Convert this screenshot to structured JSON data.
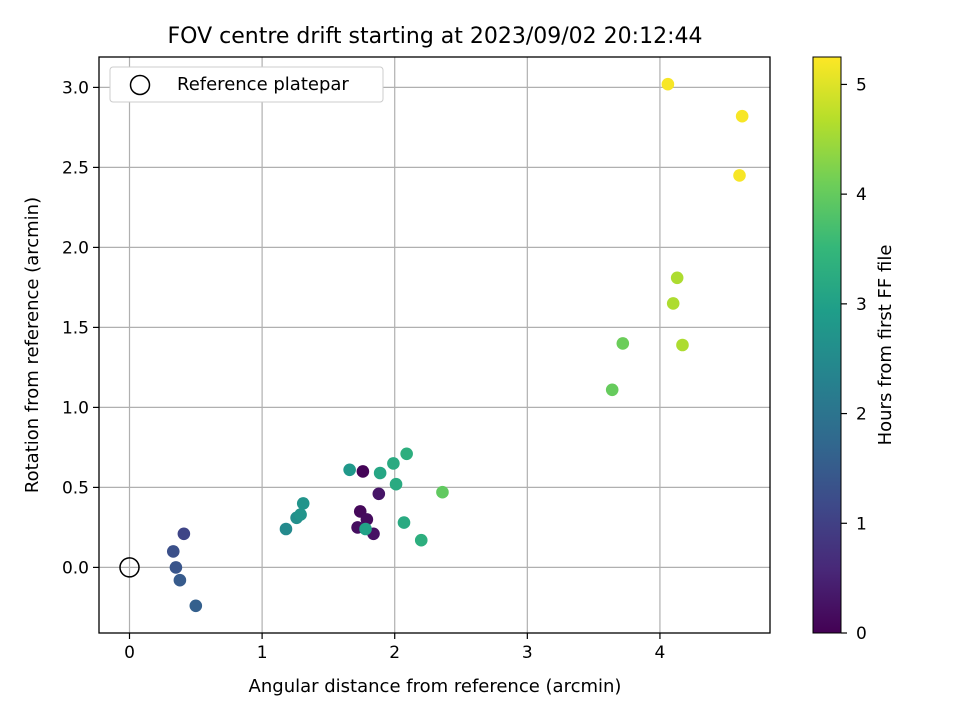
{
  "chart_data": {
    "type": "scatter",
    "title": "FOV centre drift starting at 2023/09/02 20:12:44",
    "xlabel": "Angular distance from reference (arcmin)",
    "ylabel": "Rotation from reference (arcmin)",
    "xlim": [
      -0.23,
      4.83
    ],
    "ylim": [
      -0.41,
      3.19
    ],
    "xticks": [
      0,
      1,
      2,
      3,
      4
    ],
    "yticks": [
      0.0,
      0.5,
      1.0,
      1.5,
      2.0,
      2.5,
      3.0
    ],
    "xtick_labels": [
      "0",
      "1",
      "2",
      "3",
      "4"
    ],
    "ytick_labels": [
      "0.0",
      "0.5",
      "1.0",
      "1.5",
      "2.0",
      "2.5",
      "3.0"
    ],
    "grid": true,
    "legend": {
      "placement": "top-left",
      "entries": [
        "Reference platepar"
      ]
    },
    "reference_point": {
      "x": 0,
      "y": 0
    },
    "colorbar": {
      "label": "Hours from first FF file",
      "min": 0,
      "max": 5.25,
      "ticks": [
        0,
        1,
        2,
        3,
        4,
        5
      ],
      "tick_labels": [
        "0",
        "1",
        "2",
        "3",
        "4",
        "5"
      ],
      "colormap": "viridis"
    },
    "points": [
      {
        "x": 1.76,
        "y": 0.6,
        "c": 0.05
      },
      {
        "x": 1.74,
        "y": 0.35,
        "c": 0.1
      },
      {
        "x": 1.79,
        "y": 0.3,
        "c": 0.15
      },
      {
        "x": 1.72,
        "y": 0.25,
        "c": 0.2
      },
      {
        "x": 1.84,
        "y": 0.21,
        "c": 0.25
      },
      {
        "x": 1.88,
        "y": 0.46,
        "c": 0.3
      },
      {
        "x": 0.41,
        "y": 0.21,
        "c": 1.1
      },
      {
        "x": 0.33,
        "y": 0.1,
        "c": 1.3
      },
      {
        "x": 0.35,
        "y": 0.0,
        "c": 1.4
      },
      {
        "x": 0.38,
        "y": -0.08,
        "c": 1.5
      },
      {
        "x": 0.5,
        "y": -0.24,
        "c": 1.6
      },
      {
        "x": 1.18,
        "y": 0.24,
        "c": 2.5
      },
      {
        "x": 1.26,
        "y": 0.31,
        "c": 2.6
      },
      {
        "x": 1.29,
        "y": 0.33,
        "c": 2.7
      },
      {
        "x": 1.31,
        "y": 0.4,
        "c": 2.7
      },
      {
        "x": 1.66,
        "y": 0.61,
        "c": 2.8
      },
      {
        "x": 1.78,
        "y": 0.24,
        "c": 3.0
      },
      {
        "x": 1.89,
        "y": 0.59,
        "c": 3.1
      },
      {
        "x": 1.99,
        "y": 0.65,
        "c": 3.2
      },
      {
        "x": 2.01,
        "y": 0.52,
        "c": 3.2
      },
      {
        "x": 2.07,
        "y": 0.28,
        "c": 3.2
      },
      {
        "x": 2.09,
        "y": 0.71,
        "c": 3.3
      },
      {
        "x": 2.2,
        "y": 0.17,
        "c": 3.3
      },
      {
        "x": 2.36,
        "y": 0.47,
        "c": 3.95
      },
      {
        "x": 3.64,
        "y": 1.11,
        "c": 4.0
      },
      {
        "x": 3.72,
        "y": 1.4,
        "c": 4.05
      },
      {
        "x": 4.1,
        "y": 1.65,
        "c": 4.6
      },
      {
        "x": 4.13,
        "y": 1.81,
        "c": 4.6
      },
      {
        "x": 4.17,
        "y": 1.39,
        "c": 4.6
      },
      {
        "x": 4.06,
        "y": 3.02,
        "c": 5.2
      },
      {
        "x": 4.6,
        "y": 2.45,
        "c": 5.2
      },
      {
        "x": 4.62,
        "y": 2.82,
        "c": 5.2
      }
    ]
  }
}
